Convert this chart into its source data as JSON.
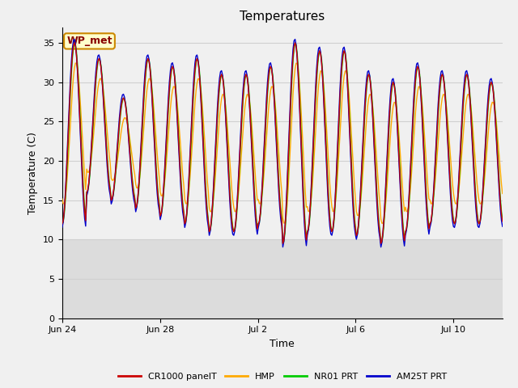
{
  "title": "Temperatures",
  "xlabel": "Time",
  "ylabel": "Temperature (C)",
  "ylim": [
    0,
    37
  ],
  "yticks": [
    0,
    5,
    10,
    15,
    20,
    25,
    30,
    35
  ],
  "grid_color": "#d0d0d0",
  "legend_entries": [
    "CR1000 panelT",
    "HMP",
    "NR01 PRT",
    "AM25T PRT"
  ],
  "legend_colors": [
    "#cc0000",
    "#ffaa00",
    "#00cc00",
    "#0000cc"
  ],
  "annotation_text": "WP_met",
  "annotation_bg": "#ffffcc",
  "annotation_border": "#cc8800",
  "annotation_text_color": "#880000",
  "n_days": 18,
  "xtick_labels": [
    "Jun 24",
    "Jun 28",
    "Jul 2",
    "Jul 6",
    "Jul 10"
  ],
  "xtick_days": [
    0,
    4,
    8,
    12,
    16
  ],
  "shaded_below": 10,
  "plot_bg": "#f0f0f0",
  "shade_color": "#dcdcdc"
}
